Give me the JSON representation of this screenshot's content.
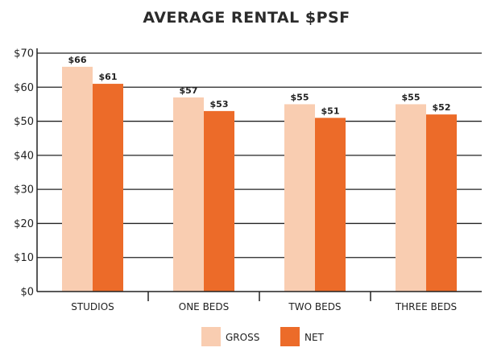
{
  "chart_data": {
    "type": "bar",
    "title": "AVERAGE RENTAL $PSF",
    "xlabel": "",
    "ylabel": "",
    "categories": [
      "STUDIOS",
      "ONE BEDS",
      "TWO BEDS",
      "THREE BEDS"
    ],
    "series": [
      {
        "name": "GROSS",
        "values": [
          66,
          57,
          55,
          55
        ],
        "labels": [
          "$66",
          "$57",
          "$55",
          "$55"
        ],
        "color": "#f9cdb1"
      },
      {
        "name": "NET",
        "values": [
          61,
          53,
          51,
          52
        ],
        "labels": [
          "$61",
          "$53",
          "$51",
          "$52"
        ],
        "color": "#ec6b29"
      }
    ],
    "ylim": [
      0,
      70
    ],
    "yticks": [
      0,
      10,
      20,
      30,
      40,
      50,
      60,
      70
    ],
    "ytick_labels": [
      "$0",
      "$10",
      "$20",
      "$30",
      "$40",
      "$50",
      "$60",
      "$70"
    ],
    "grid": true,
    "legend_position": "bottom-center",
    "colors": {
      "grid": "#222222",
      "axis": "#222222",
      "text": "#222222"
    }
  }
}
